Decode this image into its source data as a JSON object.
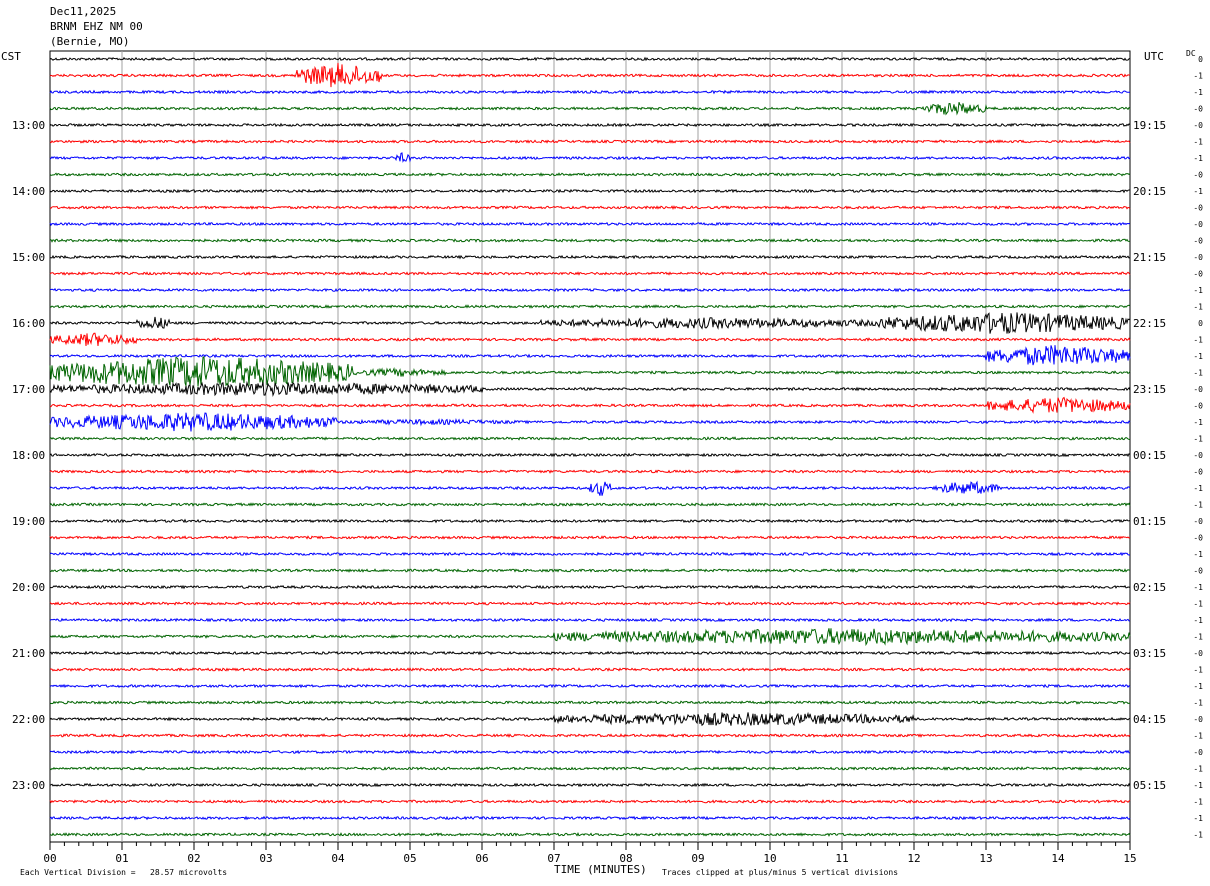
{
  "header": {
    "date": "Dec11,2025",
    "station": "BRNM EHZ NM 00",
    "location": "(Bernie, MO)"
  },
  "left_zone": "CST",
  "right_zone": "UTC",
  "dc_label": "DC",
  "footer": {
    "scale_note": "Each Vertical Division =   28.57 microvolts",
    "xlabel": "TIME (MINUTES)",
    "clip_note": "Traces clipped at plus/minus 5 vertical divisions"
  },
  "colors": {
    "black": "#000000",
    "red": "#ff0000",
    "blue": "#0000ff",
    "green": "#006400",
    "grid": "#a0a0a0"
  },
  "chart_data": {
    "type": "line",
    "title": "BRNM EHZ NM 00",
    "xlabel": "TIME (MINUTES)",
    "xlim": [
      0,
      15
    ],
    "x_ticks": [
      "00",
      "01",
      "02",
      "03",
      "04",
      "05",
      "06",
      "07",
      "08",
      "09",
      "10",
      "11",
      "12",
      "13",
      "14",
      "15"
    ],
    "left_hour_labels": [
      "13:00",
      "14:00",
      "15:00",
      "16:00",
      "17:00",
      "18:00",
      "19:00",
      "20:00",
      "21:00",
      "22:00",
      "23:00"
    ],
    "right_hour_labels": [
      "19:15",
      "20:15",
      "21:15",
      "22:15",
      "23:15",
      "00:15",
      "01:15",
      "02:15",
      "03:15",
      "04:15",
      "05:15"
    ],
    "trace_colors": [
      "black",
      "red",
      "blue",
      "green"
    ],
    "dc_offsets": [
      "0",
      "-1",
      "-1",
      "-0",
      "-0",
      "-1",
      "-1",
      "-0",
      "-1",
      "-0",
      "-0",
      "-0",
      "-0",
      "-0",
      "-1",
      "-1",
      "0",
      "-1",
      "-1",
      "-1",
      "-0",
      "-0",
      "-1",
      "-1",
      "-0",
      "-0",
      "-1",
      "-1",
      "-0",
      "-0",
      "-1",
      "-0",
      "-1",
      "-1",
      "-1",
      "-1",
      "-0",
      "-1",
      "-1",
      "-1",
      "-0",
      "-1",
      "-0",
      "-1",
      "-1",
      "-1",
      "-1",
      "-1"
    ],
    "events": [
      {
        "trace": 1,
        "start": 3.4,
        "end": 4.6,
        "amp": 0.9
      },
      {
        "trace": 3,
        "start": 12.1,
        "end": 13.0,
        "amp": 0.5
      },
      {
        "trace": 6,
        "start": 4.8,
        "end": 5.0,
        "amp": 0.4
      },
      {
        "trace": 16,
        "start": 11.5,
        "end": 15.0,
        "amp": 0.8
      },
      {
        "trace": 16,
        "start": 6.8,
        "end": 11.5,
        "amp": 0.4
      },
      {
        "trace": 16,
        "start": 1.2,
        "end": 1.7,
        "amp": 0.5
      },
      {
        "trace": 17,
        "start": 0.0,
        "end": 1.2,
        "amp": 0.5
      },
      {
        "trace": 18,
        "start": 13.0,
        "end": 15.0,
        "amp": 0.8
      },
      {
        "trace": 19,
        "start": 0.0,
        "end": 4.2,
        "amp": 1.2
      },
      {
        "trace": 19,
        "start": 4.2,
        "end": 5.5,
        "amp": 0.3
      },
      {
        "trace": 20,
        "start": 0.0,
        "end": 6.0,
        "amp": 0.5
      },
      {
        "trace": 21,
        "start": 13.0,
        "end": 15.0,
        "amp": 0.6
      },
      {
        "trace": 22,
        "start": 0.0,
        "end": 4.0,
        "amp": 0.7
      },
      {
        "trace": 22,
        "start": 4.0,
        "end": 6.5,
        "amp": 0.2
      },
      {
        "trace": 26,
        "start": 7.5,
        "end": 7.8,
        "amp": 0.6
      },
      {
        "trace": 26,
        "start": 12.3,
        "end": 13.2,
        "amp": 0.5
      },
      {
        "trace": 35,
        "start": 7.0,
        "end": 15.0,
        "amp": 0.6
      },
      {
        "trace": 40,
        "start": 7.0,
        "end": 12.0,
        "amp": 0.5
      }
    ]
  }
}
